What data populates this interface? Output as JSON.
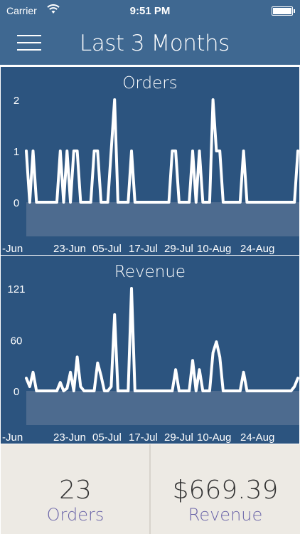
{
  "status_bar": {
    "carrier": "Carrier",
    "time": "9:51 PM",
    "wifi_icon": "wifi-icon",
    "battery_icon": "battery-icon"
  },
  "nav": {
    "title": "Last 3 Months",
    "menu_icon": "hamburger-menu-icon"
  },
  "colors": {
    "bar": "#3f6891",
    "panel": "#2c547f",
    "area": "#4d6b8f",
    "summary_bg": "#edeae4",
    "label": "#6a64a8"
  },
  "chart_data": [
    {
      "type": "line",
      "title": "Orders",
      "x_ticks": [
        "-Jun",
        "23-Jun",
        "05-Jul",
        "17-Jul",
        "29-Jul",
        "10-Aug",
        "24-Aug"
      ],
      "y_ticks": [
        "2",
        "1",
        "0"
      ],
      "ylim": [
        0,
        2
      ],
      "grid": false,
      "series": [
        {
          "values": [
            1,
            0,
            1,
            0,
            0,
            0,
            0,
            0,
            0,
            0,
            1,
            0,
            1,
            0,
            1,
            1,
            0,
            0,
            0,
            0,
            1,
            1,
            0,
            0,
            0,
            1,
            2,
            0,
            0,
            0,
            0,
            1,
            0,
            0,
            0,
            0,
            0,
            0,
            0,
            0,
            0,
            0,
            0,
            1,
            1,
            0,
            0,
            0,
            0,
            1,
            0,
            1,
            0,
            0,
            0,
            2,
            1,
            1,
            0,
            0,
            0,
            0,
            0,
            0,
            1,
            0,
            0,
            0,
            0,
            0,
            0,
            0,
            0,
            0,
            0,
            0,
            0,
            0,
            0,
            0,
            1
          ]
        }
      ]
    },
    {
      "type": "line",
      "title": "Revenue",
      "x_ticks": [
        "-Jun",
        "23-Jun",
        "05-Jul",
        "17-Jul",
        "29-Jul",
        "10-Aug",
        "24-Aug"
      ],
      "y_ticks": [
        "121",
        "60",
        "0"
      ],
      "ylim": [
        0,
        121
      ],
      "grid": false,
      "series": [
        {
          "values": [
            15,
            5,
            22,
            0,
            0,
            0,
            0,
            0,
            0,
            0,
            10,
            0,
            3,
            22,
            0,
            40,
            5,
            0,
            0,
            0,
            0,
            33,
            18,
            0,
            0,
            5,
            90,
            0,
            0,
            0,
            0,
            121,
            0,
            0,
            0,
            0,
            0,
            0,
            0,
            0,
            0,
            0,
            0,
            0,
            25,
            0,
            0,
            0,
            0,
            36,
            0,
            25,
            0,
            0,
            0,
            45,
            58,
            40,
            0,
            0,
            0,
            0,
            0,
            0,
            22,
            0,
            0,
            0,
            0,
            0,
            0,
            0,
            0,
            0,
            0,
            0,
            0,
            0,
            0,
            5,
            15
          ]
        }
      ]
    }
  ],
  "summary": {
    "orders_value": "23",
    "orders_label": "Orders",
    "revenue_value": "$669.39",
    "revenue_label": "Revenue"
  }
}
